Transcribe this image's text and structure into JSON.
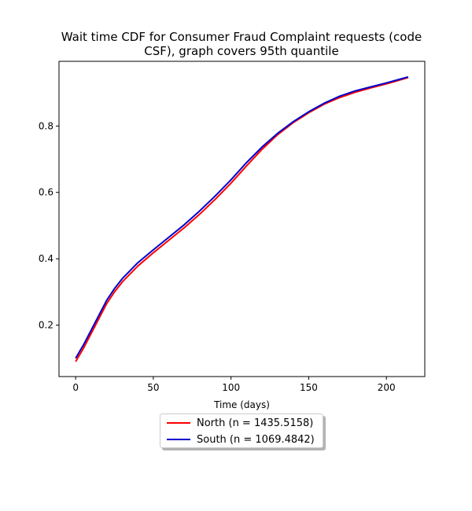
{
  "chart_data": {
    "type": "line",
    "title_lines": [
      "Wait time CDF for Consumer Fraud Complaint  requests (code",
      "CSF), graph covers 95th quantile"
    ],
    "xlabel": "Time (days)",
    "ylabel": "",
    "xlim": [
      -10.7,
      224.7
    ],
    "ylim": [
      0.045,
      0.995
    ],
    "xticks": [
      0,
      50,
      100,
      150,
      200
    ],
    "yticks": [
      0.2,
      0.4,
      0.6,
      0.8
    ],
    "ytick_labels": [
      "0.2",
      "0.4",
      "0.6",
      "0.8"
    ],
    "grid": false,
    "legend_position": "below",
    "series": [
      {
        "name": "North (n = 1435.5158)",
        "color": "#ff0000",
        "x": [
          0,
          5,
          10,
          15,
          20,
          25,
          30,
          40,
          50,
          60,
          70,
          80,
          90,
          100,
          110,
          120,
          130,
          140,
          150,
          160,
          170,
          180,
          190,
          200,
          214
        ],
        "y": [
          0.09,
          0.13,
          0.175,
          0.22,
          0.265,
          0.3,
          0.33,
          0.378,
          0.418,
          0.456,
          0.494,
          0.535,
          0.58,
          0.628,
          0.68,
          0.73,
          0.774,
          0.81,
          0.84,
          0.866,
          0.886,
          0.902,
          0.915,
          0.927,
          0.946
        ]
      },
      {
        "name": "South (n = 1069.4842)",
        "color": "#0000cc",
        "x": [
          0,
          5,
          10,
          15,
          20,
          25,
          30,
          40,
          50,
          60,
          70,
          80,
          90,
          100,
          110,
          120,
          130,
          140,
          150,
          160,
          170,
          180,
          190,
          200,
          214
        ],
        "y": [
          0.1,
          0.14,
          0.185,
          0.23,
          0.275,
          0.31,
          0.34,
          0.388,
          0.427,
          0.465,
          0.503,
          0.545,
          0.59,
          0.638,
          0.69,
          0.737,
          0.778,
          0.813,
          0.843,
          0.869,
          0.89,
          0.906,
          0.918,
          0.93,
          0.948
        ]
      }
    ]
  }
}
